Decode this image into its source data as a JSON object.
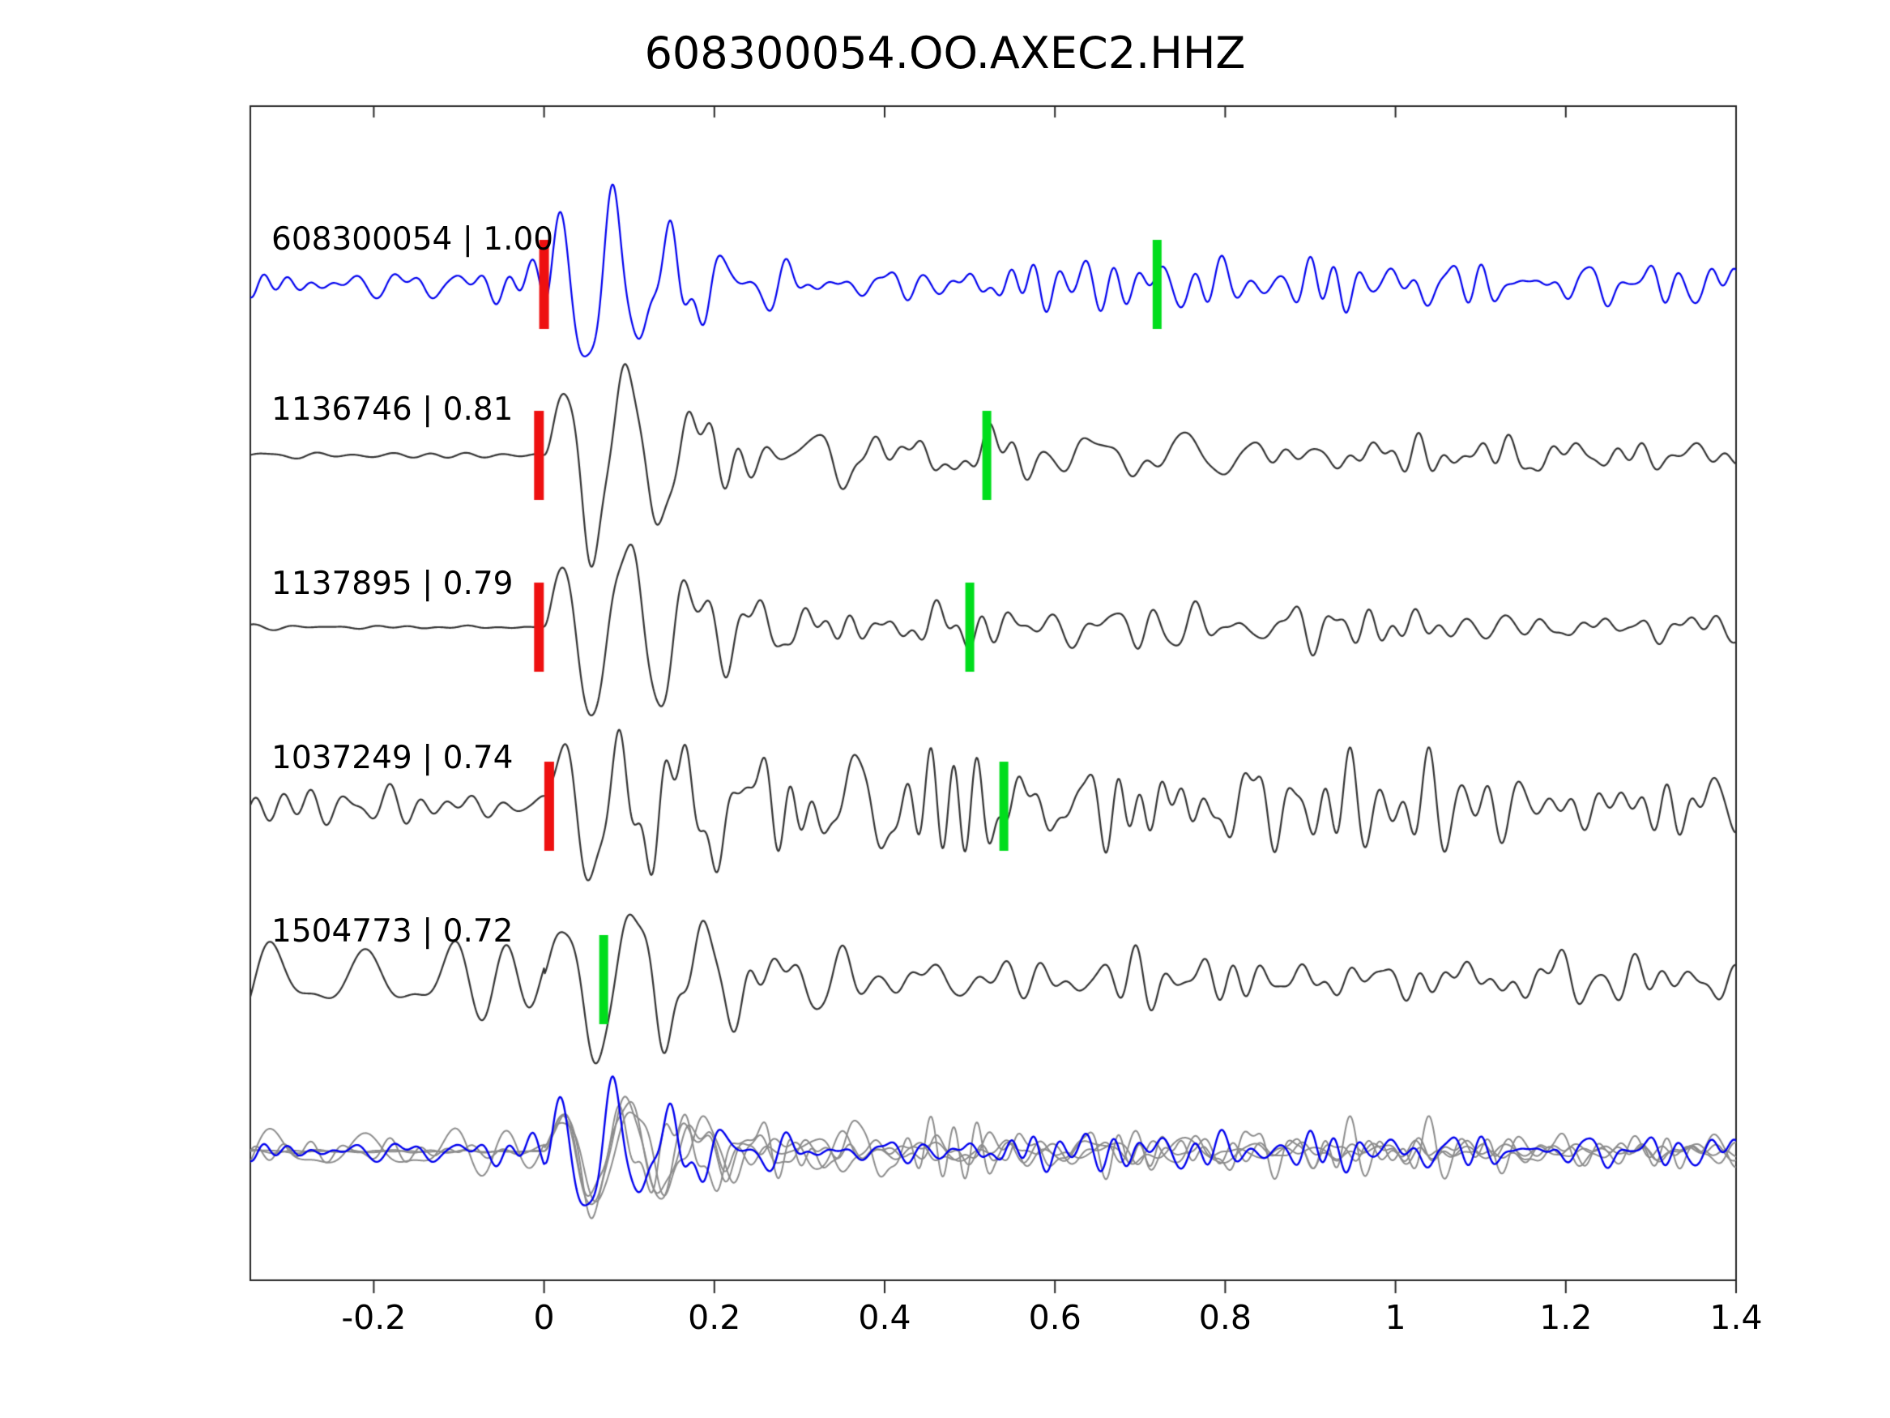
{
  "chart_data": {
    "type": "line",
    "title": "608300054.OO.AXEC2.HHZ",
    "xlabel": "",
    "ylabel": "",
    "x_range": [
      -0.345,
      1.4
    ],
    "x_ticks": [
      -0.2,
      0,
      0.2,
      0.4,
      0.6,
      0.8,
      1.0,
      1.2,
      1.4
    ],
    "x_tick_labels": [
      "-0.2",
      "0",
      "0.2",
      "0.4",
      "0.6",
      "0.8",
      "1",
      "1.2",
      "1.4"
    ],
    "grid": false,
    "legend": "none",
    "traces": [
      {
        "label": "608300054 | 1.00",
        "event_id": "608300054",
        "correlation": 1.0,
        "color": "#0000ee",
        "red_pick_x": 0.0,
        "green_pick_x": 0.72,
        "pre_signal": "low-noise"
      },
      {
        "label": "1136746 | 0.81",
        "event_id": "1136746",
        "correlation": 0.81,
        "color": "#333333",
        "red_pick_x": -0.006,
        "green_pick_x": 0.52,
        "pre_signal": "flat"
      },
      {
        "label": "1137895 | 0.79",
        "event_id": "1137895",
        "correlation": 0.79,
        "color": "#333333",
        "red_pick_x": -0.006,
        "green_pick_x": 0.5,
        "pre_signal": "flat"
      },
      {
        "label": "1037249 | 0.74",
        "event_id": "1037249",
        "correlation": 0.74,
        "color": "#333333",
        "red_pick_x": 0.006,
        "green_pick_x": 0.54,
        "pre_signal": "noisy"
      },
      {
        "label": "1504773 | 0.72",
        "event_id": "1504773",
        "correlation": 0.72,
        "color": "#333333",
        "red_pick_x": null,
        "green_pick_x": 0.07,
        "pre_signal": "very-noisy"
      }
    ],
    "overlay": {
      "present": true,
      "gray_color": "#8c8c8c",
      "highlight_color": "#0000ee"
    },
    "pick_colors": {
      "red": "#ee1010",
      "green": "#00dd1c"
    },
    "axis_color": "#262626"
  }
}
